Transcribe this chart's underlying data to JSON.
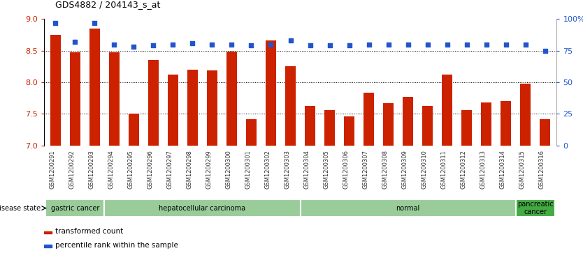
{
  "title": "GDS4882 / 204143_s_at",
  "categories": [
    "GSM1200291",
    "GSM1200292",
    "GSM1200293",
    "GSM1200294",
    "GSM1200295",
    "GSM1200296",
    "GSM1200297",
    "GSM1200298",
    "GSM1200299",
    "GSM1200300",
    "GSM1200301",
    "GSM1200302",
    "GSM1200303",
    "GSM1200304",
    "GSM1200305",
    "GSM1200306",
    "GSM1200307",
    "GSM1200308",
    "GSM1200309",
    "GSM1200310",
    "GSM1200311",
    "GSM1200312",
    "GSM1200313",
    "GSM1200314",
    "GSM1200315",
    "GSM1200316"
  ],
  "bar_values": [
    8.75,
    8.47,
    8.85,
    8.47,
    7.5,
    8.35,
    8.12,
    8.2,
    8.19,
    8.48,
    7.42,
    8.66,
    8.25,
    7.62,
    7.56,
    7.46,
    7.83,
    7.67,
    7.77,
    7.63,
    8.12,
    7.56,
    7.68,
    7.7,
    7.98,
    7.42
  ],
  "percentile_values": [
    97,
    82,
    97,
    80,
    78,
    79,
    80,
    81,
    80,
    80,
    79,
    80,
    83,
    79,
    79,
    79,
    80,
    80,
    80,
    80,
    80,
    80,
    80,
    80,
    80,
    75
  ],
  "ylim_left": [
    7.0,
    9.0
  ],
  "ylim_right": [
    0,
    100
  ],
  "yticks_left": [
    7.0,
    7.5,
    8.0,
    8.5,
    9.0
  ],
  "yticks_right": [
    0,
    25,
    50,
    75,
    100
  ],
  "bar_color": "#cc2200",
  "dot_color": "#2255cc",
  "groups": [
    {
      "label": "gastric cancer",
      "start": 0,
      "end": 3,
      "color": "#99cc99"
    },
    {
      "label": "hepatocellular carcinoma",
      "start": 3,
      "end": 13,
      "color": "#99cc99"
    },
    {
      "label": "normal",
      "start": 13,
      "end": 24,
      "color": "#99cc99"
    },
    {
      "label": "pancreatic\ncancer",
      "start": 24,
      "end": 26,
      "color": "#44aa44"
    }
  ],
  "disease_state_label": "disease state",
  "legend_items": [
    {
      "color": "#cc2200",
      "label": "transformed count"
    },
    {
      "color": "#2255cc",
      "label": "percentile rank within the sample"
    }
  ]
}
